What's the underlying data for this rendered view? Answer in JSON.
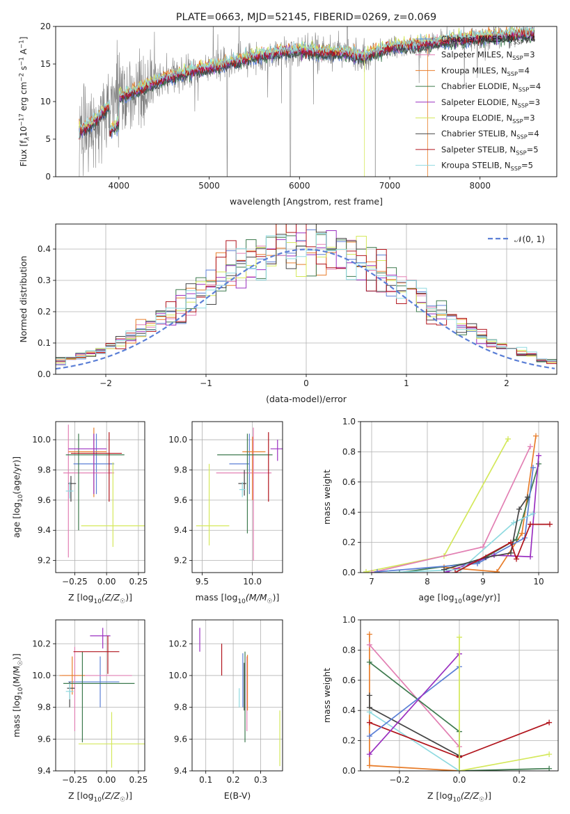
{
  "colors": {
    "c1": "#5b7fd6",
    "c2": "#e87d2a",
    "c3": "#3d7a4e",
    "c4": "#e27fb3",
    "c5": "#444444",
    "c6": "#8fdae0",
    "c7": "#9a2fc0",
    "c8": "#d4e85a",
    "c9": "#b1141c",
    "c10": "#808080",
    "c11": "#c8702a",
    "c12": "#5f8f6e"
  },
  "chart_data": [
    {
      "id": "spectrum",
      "type": "line",
      "title": "PLATE=0663, MJD=52145, FIBERID=0269, z=0.069",
      "xlabel": "wavelength [Angstrom, rest frame]",
      "ylabel": "Flux [f$_\\lambda$10$^{-17}$ erg cm$^{-2}$ s$^{-1}$ A$^{-1}$]",
      "ylabel_parts": [
        "Flux [f",
        "λ",
        "10",
        "−17",
        " erg cm",
        "−2",
        " s",
        "−1",
        " A",
        "−1",
        "]"
      ],
      "xlim": [
        3300,
        8850
      ],
      "ylim": [
        0,
        20
      ],
      "xticks": [
        4000,
        5000,
        6000,
        7000,
        8000
      ],
      "yticks": [
        0,
        5,
        10,
        15,
        20
      ],
      "legend_position": "top-right",
      "legend": [
        {
          "label": "Chabrier MILES, N",
          "sub": "SSP",
          "tail": "=4",
          "color": "#5b7fd6"
        },
        {
          "label": "Salpeter MILES, N",
          "sub": "SSP",
          "tail": "=3",
          "color": "#e27fb3"
        },
        {
          "label": "Kroupa MILES, N",
          "sub": "SSP",
          "tail": "=4",
          "color": "#e87d2a"
        },
        {
          "label": "Chabrier ELODIE, N",
          "sub": "SSP",
          "tail": "=4",
          "color": "#3d7a4e"
        },
        {
          "label": "Salpeter ELODIE, N",
          "sub": "SSP",
          "tail": "=3",
          "color": "#9a2fc0"
        },
        {
          "label": "Kroupa ELODIE, N",
          "sub": "SSP",
          "tail": "=3",
          "color": "#d4e85a"
        },
        {
          "label": "Chabrier STELIB, N",
          "sub": "SSP",
          "tail": "=4",
          "color": "#444444"
        },
        {
          "label": "Salpeter STELIB, N",
          "sub": "SSP",
          "tail": "=5",
          "color": "#b1141c"
        },
        {
          "label": "Kroupa STELIB, N",
          "sub": "SSP",
          "tail": "=5",
          "color": "#8fdae0"
        }
      ],
      "continuum_knots": {
        "x": [
          3560,
          3700,
          3900,
          4000,
          4200,
          4500,
          4800,
          5000,
          5200,
          5500,
          5800,
          6000,
          6300,
          6500,
          6700,
          7000,
          7300,
          7600,
          8000,
          8500,
          8850
        ],
        "y": [
          6,
          7,
          9.5,
          10.5,
          11.5,
          13,
          14,
          14.5,
          15,
          16,
          16.5,
          16.8,
          16.5,
          16.5,
          16,
          17.2,
          17.5,
          18,
          18.5,
          19,
          19.2
        ]
      }
    },
    {
      "id": "residuals",
      "type": "area",
      "xlabel": "(data-model)/error",
      "ylabel": "Normed distribution",
      "xlim": [
        -2.5,
        2.5
      ],
      "ylim": [
        0,
        0.48
      ],
      "xticks": [
        -2,
        -1,
        0,
        1,
        2
      ],
      "yticks": [
        0.0,
        0.1,
        0.2,
        0.3,
        0.4
      ],
      "legend_position": "top-right",
      "legend": [
        {
          "label": "𝒩(0, 1)",
          "color": "#5b7fd6",
          "style": "dashed"
        }
      ],
      "bin_width": 0.1
    },
    {
      "id": "age_vs_Z",
      "type": "scatter",
      "xlabel": "Z [log10(Z/Z☉)]",
      "xlabel_parts": [
        "Z [log",
        "10",
        "(Z/Z",
        "☉",
        ")]"
      ],
      "ylabel": "age [log10(age/yr)]",
      "ylabel_parts": [
        "age  [log",
        "10",
        "(age/yr)]"
      ],
      "xlim": [
        -0.4,
        0.3
      ],
      "ylim": [
        9.12,
        10.12
      ],
      "xticks": [
        -0.25,
        0.0,
        0.25
      ],
      "yticks": [
        9.2,
        9.4,
        9.6,
        9.8,
        10.0
      ],
      "points": [
        {
          "x": -0.08,
          "y": 9.84,
          "xerr": [
            0.18,
            0.14
          ],
          "yerr": [
            0.2,
            0.2
          ],
          "color": "#5b7fd6"
        },
        {
          "x": -0.3,
          "y": 9.78,
          "xerr": [
            0.04,
            0.36
          ],
          "yerr": [
            0.56,
            0.32
          ],
          "color": "#e27fb3"
        },
        {
          "x": -0.1,
          "y": 9.92,
          "xerr": [
            0.2,
            0.1
          ],
          "yerr": [
            0.3,
            0.16
          ],
          "color": "#e87d2a"
        },
        {
          "x": -0.22,
          "y": 9.9,
          "xerr": [
            0.1,
            0.36
          ],
          "yerr": [
            0.5,
            0.14
          ],
          "color": "#3d7a4e"
        },
        {
          "x": -0.1,
          "y": 9.94,
          "xerr": [
            0.2,
            0.1
          ],
          "yerr": [
            0.3,
            0.1
          ],
          "color": "#9a2fc0"
        },
        {
          "x": 0.05,
          "y": 9.43,
          "xerr": [
            0.25,
            0.25
          ],
          "yerr": [
            0.14,
            0.42
          ],
          "color": "#d4e85a"
        },
        {
          "x": -0.28,
          "y": 9.71,
          "xerr": [
            0.02,
            0.04
          ],
          "yerr": [
            0.12,
            0.05
          ],
          "color": "#444444"
        },
        {
          "x": 0.02,
          "y": 9.91,
          "xerr": [
            0.3,
            0.1
          ],
          "yerr": [
            0.32,
            0.14
          ],
          "color": "#b1141c"
        },
        {
          "x": -0.29,
          "y": 9.66,
          "xerr": [
            0.03,
            0.03
          ],
          "yerr": [
            0.05,
            0.06
          ],
          "color": "#8fdae0"
        }
      ]
    },
    {
      "id": "age_vs_mass",
      "type": "scatter",
      "xlabel": "mass [log10(M/M☉)]",
      "xlabel_parts": [
        "mass [log",
        "10",
        "(M/M",
        "☉",
        ")]"
      ],
      "xlim": [
        9.4,
        10.3
      ],
      "ylim": [
        9.12,
        10.12
      ],
      "xticks": [
        9.5,
        10.0
      ],
      "yticks": [
        9.2,
        9.4,
        9.6,
        9.8,
        10.0
      ],
      "points": [
        {
          "x": 9.97,
          "y": 9.84,
          "xerr": [
            0.2,
            0.0
          ],
          "yerr": [
            0.2,
            0.2
          ],
          "color": "#5b7fd6"
        },
        {
          "x": 10.01,
          "y": 9.78,
          "xerr": [
            0.37,
            0.18
          ],
          "yerr": [
            0.58,
            0.3
          ],
          "color": "#e27fb3"
        },
        {
          "x": 10.0,
          "y": 9.92,
          "xerr": [
            0.1,
            0.13
          ],
          "yerr": [
            0.32,
            0.1
          ],
          "color": "#e87d2a"
        },
        {
          "x": 9.95,
          "y": 9.9,
          "xerr": [
            0.3,
            0.25
          ],
          "yerr": [
            0.52,
            0.14
          ],
          "color": "#3d7a4e"
        },
        {
          "x": 10.25,
          "y": 9.94,
          "xerr": [
            0.07,
            0.05
          ],
          "yerr": [
            0.08,
            0.06
          ],
          "color": "#9a2fc0"
        },
        {
          "x": 9.57,
          "y": 9.43,
          "xerr": [
            0.13,
            0.2
          ],
          "yerr": [
            0.13,
            0.41
          ],
          "color": "#d4e85a"
        },
        {
          "x": 9.92,
          "y": 9.71,
          "xerr": [
            0.06,
            0.02
          ],
          "yerr": [
            0.08,
            0.09
          ],
          "color": "#444444"
        },
        {
          "x": 10.16,
          "y": 9.91,
          "xerr": [
            0.0,
            0.0
          ],
          "yerr": [
            0.32,
            0.14
          ],
          "color": "#b1141c"
        },
        {
          "x": 9.9,
          "y": 9.67,
          "xerr": [
            0.03,
            0.03
          ],
          "yerr": [
            0.05,
            0.05
          ],
          "color": "#8fdae0"
        }
      ]
    },
    {
      "id": "weight_vs_age",
      "type": "line",
      "xlabel": "age [log10(age/yr)]",
      "xlabel_parts": [
        "age  [log",
        "10",
        "(age/yr)]"
      ],
      "ylabel": "mass weight",
      "xlim": [
        6.8,
        10.35
      ],
      "ylim": [
        0,
        1
      ],
      "xticks": [
        7,
        8,
        9,
        10
      ],
      "yticks": [
        0.0,
        0.2,
        0.4,
        0.6,
        0.8,
        1.0
      ],
      "series": [
        {
          "color": "#d4e85a",
          "x": [
            6.9,
            8.3,
            9.45
          ],
          "y": [
            0.005,
            0.11,
            0.885
          ]
        },
        {
          "color": "#e27fb3",
          "x": [
            7.0,
            9.0,
            9.85
          ],
          "y": [
            0.0,
            0.17,
            0.835
          ]
        },
        {
          "color": "#e87d2a",
          "x": [
            8.3,
            9.25,
            9.7,
            9.95
          ],
          "y": [
            0.035,
            0.005,
            0.26,
            0.905
          ]
        },
        {
          "color": "#3d7a4e",
          "x": [
            7.5,
            8.9,
            9.6,
            10.0
          ],
          "y": [
            0.0,
            0.07,
            0.22,
            0.72
          ]
        },
        {
          "color": "#5b7fd6",
          "x": [
            7.1,
            8.9,
            9.75,
            9.9
          ],
          "y": [
            0.005,
            0.06,
            0.23,
            0.695
          ]
        },
        {
          "color": "#9a2fc0",
          "x": [
            8.35,
            9.2,
            9.85,
            10.0
          ],
          "y": [
            0.005,
            0.115,
            0.105,
            0.775
          ]
        },
        {
          "color": "#8fdae0",
          "x": [
            7.3,
            8.6,
            9.55,
            9.9
          ],
          "y": [
            0.0,
            0.02,
            0.33,
            0.39
          ]
        },
        {
          "color": "#444444",
          "x": [
            8.3,
            9.05,
            9.5,
            9.65,
            9.8
          ],
          "y": [
            0.02,
            0.1,
            0.13,
            0.42,
            0.5
          ]
        },
        {
          "color": "#b1141c",
          "x": [
            8.5,
            9.5,
            9.6,
            9.85,
            10.2
          ],
          "y": [
            0.0,
            0.2,
            0.09,
            0.32,
            0.32
          ]
        }
      ]
    },
    {
      "id": "mass_vs_Z",
      "type": "scatter",
      "xlabel": "Z [log10(Z/Z☉)]",
      "xlabel_parts": [
        "Z [log",
        "10",
        "(Z/Z",
        "☉",
        ")]"
      ],
      "ylabel": "mass [log10(M/M☉)]",
      "ylabel_parts": [
        "mass [log",
        "10",
        "(M/M",
        "☉",
        ")]"
      ],
      "xlim": [
        -0.4,
        0.3
      ],
      "ylim": [
        9.4,
        10.35
      ],
      "xticks": [
        -0.25,
        0.0,
        0.25
      ],
      "yticks": [
        9.4,
        9.6,
        9.8,
        10.0,
        10.2
      ],
      "points": [
        {
          "x": -0.05,
          "y": 9.96,
          "xerr": [
            0.25,
            0.15
          ],
          "yerr": [
            0.16,
            0.16
          ],
          "color": "#5b7fd6"
        },
        {
          "x": -0.25,
          "y": 10.0,
          "xerr": [
            0.1,
            0.45
          ],
          "yerr": [
            0.35,
            0.18
          ],
          "color": "#e27fb3"
        },
        {
          "x": -0.27,
          "y": 10.0,
          "xerr": [
            0.1,
            0.1
          ],
          "yerr": [
            0.12,
            0.12
          ],
          "color": "#e87d2a"
        },
        {
          "x": -0.19,
          "y": 9.95,
          "xerr": [
            0.15,
            0.41
          ],
          "yerr": [
            0.37,
            0.2
          ],
          "color": "#3d7a4e"
        },
        {
          "x": -0.03,
          "y": 10.25,
          "xerr": [
            0.1,
            0.06
          ],
          "yerr": [
            0.08,
            0.05
          ],
          "color": "#9a2fc0"
        },
        {
          "x": 0.04,
          "y": 9.57,
          "xerr": [
            0.26,
            0.26
          ],
          "yerr": [
            0.15,
            0.2
          ],
          "color": "#d4e85a"
        },
        {
          "x": -0.29,
          "y": 9.92,
          "xerr": [
            0.02,
            0.04
          ],
          "yerr": [
            0.12,
            0.04
          ],
          "color": "#444444"
        },
        {
          "x": 0.01,
          "y": 10.15,
          "xerr": [
            0.27,
            0.09
          ],
          "yerr": [
            0.14,
            0.1
          ],
          "color": "#b1141c"
        },
        {
          "x": -0.29,
          "y": 9.9,
          "xerr": [
            0.03,
            0.03
          ],
          "yerr": [
            0.05,
            0.05
          ],
          "color": "#8fdae0"
        }
      ]
    },
    {
      "id": "mass_vs_ebv",
      "type": "scatter",
      "xlabel": "E(B-V)",
      "xlim": [
        0.05,
        0.38
      ],
      "ylim": [
        9.4,
        10.35
      ],
      "xticks": [
        0.1,
        0.2,
        0.3
      ],
      "yticks": [
        9.4,
        9.6,
        9.8,
        10.0,
        10.2
      ],
      "points": [
        {
          "x": 0.235,
          "y": 9.96,
          "yerr": [
            0.16,
            0.18
          ],
          "color": "#5b7fd6"
        },
        {
          "x": 0.25,
          "y": 9.95,
          "yerr": [
            0.3,
            0.17
          ],
          "color": "#e27fb3"
        },
        {
          "x": 0.252,
          "y": 9.95,
          "yerr": [
            0.17,
            0.18
          ],
          "color": "#e87d2a"
        },
        {
          "x": 0.243,
          "y": 9.95,
          "yerr": [
            0.37,
            0.2
          ],
          "color": "#3d7a4e"
        },
        {
          "x": 0.078,
          "y": 10.22,
          "yerr": [
            0.07,
            0.08
          ],
          "color": "#9a2fc0"
        },
        {
          "x": 0.37,
          "y": 9.6,
          "yerr": [
            0.17,
            0.18
          ],
          "color": "#d4e85a"
        },
        {
          "x": 0.24,
          "y": 9.88,
          "yerr": [
            0.1,
            0.2
          ],
          "color": "#444444"
        },
        {
          "x": 0.158,
          "y": 10.1,
          "yerr": [
            0.1,
            0.1
          ],
          "color": "#b1141c"
        },
        {
          "x": 0.222,
          "y": 9.86,
          "yerr": [
            0.06,
            0.06
          ],
          "color": "#8fdae0"
        }
      ]
    },
    {
      "id": "weight_vs_Z",
      "type": "line",
      "xlabel": "Z [log10(Z/Z☉)]",
      "xlabel_parts": [
        "Z [log",
        "10",
        "(Z/Z",
        "☉",
        ")]"
      ],
      "ylabel": "mass weight",
      "xlim": [
        -0.33,
        0.33
      ],
      "ylim": [
        0,
        1
      ],
      "xticks": [
        -0.2,
        0.0,
        0.2
      ],
      "yticks": [
        0.0,
        0.2,
        0.4,
        0.6,
        0.8,
        1.0
      ],
      "series": [
        {
          "color": "#e87d2a",
          "x": [
            -0.3,
            -0.3,
            0.0
          ],
          "y": [
            0.905,
            0.035,
            0.0
          ]
        },
        {
          "color": "#e27fb3",
          "x": [
            -0.3,
            0.0,
            0.0
          ],
          "y": [
            0.835,
            0.16,
            0.0
          ]
        },
        {
          "color": "#3d7a4e",
          "x": [
            -0.3,
            0.0,
            0.0,
            0.3
          ],
          "y": [
            0.72,
            0.26,
            0.0,
            0.015
          ]
        },
        {
          "color": "#444444",
          "x": [
            -0.3,
            -0.3,
            0.0,
            0.0
          ],
          "y": [
            0.5,
            0.42,
            0.1,
            0.09
          ]
        },
        {
          "color": "#8fdae0",
          "x": [
            -0.3,
            0.0
          ],
          "y": [
            0.39,
            0.0
          ]
        },
        {
          "color": "#b1141c",
          "x": [
            -0.3,
            0.0,
            0.3
          ],
          "y": [
            0.32,
            0.09,
            0.32
          ]
        },
        {
          "color": "#5b7fd6",
          "x": [
            -0.3,
            0.0
          ],
          "y": [
            0.23,
            0.69
          ]
        },
        {
          "color": "#9a2fc0",
          "x": [
            -0.3,
            0.0
          ],
          "y": [
            0.11,
            0.775
          ]
        },
        {
          "color": "#d4e85a",
          "x": [
            0.0,
            0.0,
            0.3
          ],
          "y": [
            0.885,
            0.0,
            0.11
          ]
        }
      ]
    }
  ]
}
